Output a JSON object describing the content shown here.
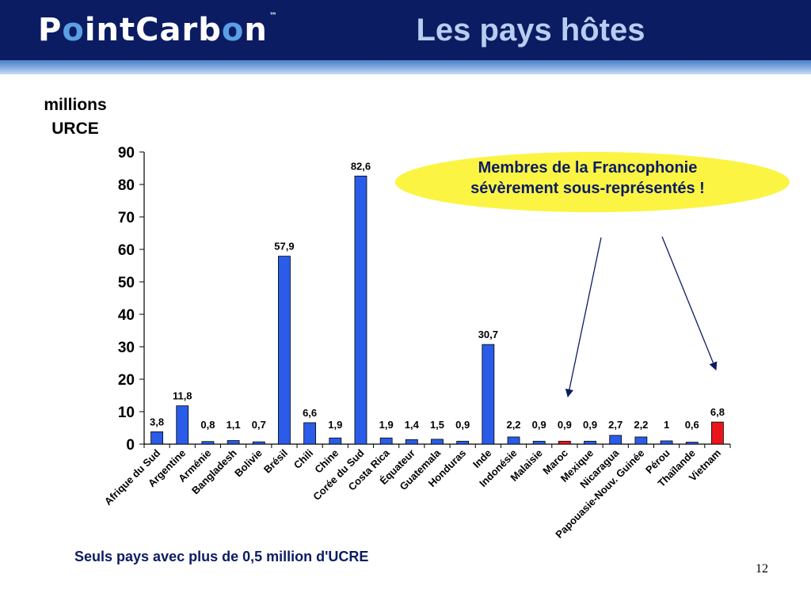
{
  "header": {
    "logo_part1": "P",
    "logo_o1": "o",
    "logo_part2": "int",
    "logo_part3": "C",
    "logo_part4": "arb",
    "logo_o2": "o",
    "logo_part5": "n",
    "logo_tm": "™",
    "title": "Les pays hôtes"
  },
  "colors": {
    "header_bg": "#0c1c62",
    "bar_blue": "#2a5ce8",
    "bar_red": "#e8161c",
    "callout_yellow": "#fbf443"
  },
  "callout": {
    "line1": "Membres de la Francophonie",
    "line2": "sévèrement sous-représentés !"
  },
  "note": "Seuls pays avec plus de 0,5 million d'UCRE",
  "slide_number": "12",
  "chart_data": {
    "type": "bar",
    "ylabel_line1": "millions",
    "ylabel_line2": "URCE",
    "ylim": [
      0,
      90
    ],
    "yticks": [
      0,
      10,
      20,
      30,
      40,
      50,
      60,
      70,
      80,
      90
    ],
    "grid": false,
    "categories": [
      "Afrique du Sud",
      "Argentine",
      "Arménie",
      "Bangladesh",
      "Bolivie",
      "Brésil",
      "Chili",
      "Chine",
      "Corée du Sud",
      "Costa Rica",
      "Équateur",
      "Guatemala",
      "Honduras",
      "Inde",
      "Indonésie",
      "Malaisie",
      "Maroc",
      "Mexique",
      "Nicaragua",
      "Papouasie-Nouv. Guinée",
      "Pérou",
      "Thaïlande",
      "Vietnam"
    ],
    "values": [
      3.8,
      11.8,
      0.8,
      1.1,
      0.7,
      57.9,
      6.6,
      1.9,
      82.6,
      1.9,
      1.4,
      1.5,
      0.9,
      30.7,
      2.2,
      0.9,
      0.9,
      0.9,
      2.7,
      2.2,
      1,
      0.6,
      6.8
    ],
    "value_labels": [
      "3,8",
      "11,8",
      "0,8",
      "1,1",
      "0,7",
      "57,9",
      "6,6",
      "1,9",
      "82,6",
      "1,9",
      "1,4",
      "1,5",
      "0,9",
      "30,7",
      "2,2",
      "0,9",
      "0,9",
      "0,9",
      "2,7",
      "2,2",
      "1",
      "0,6",
      "6,8"
    ],
    "highlighted": [
      "Maroc",
      "Vietnam"
    ]
  }
}
